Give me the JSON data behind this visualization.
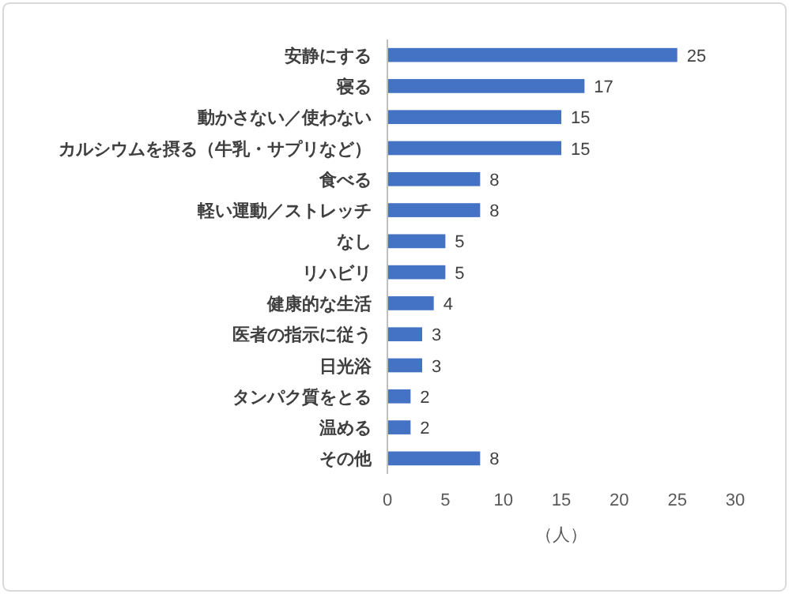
{
  "chart_data": {
    "type": "bar",
    "orientation": "horizontal",
    "categories": [
      "安静にする",
      "寝る",
      "動かさない／使わない",
      "カルシウムを摂る（牛乳・サプリなど）",
      "食べる",
      "軽い運動／ストレッチ",
      "なし",
      "リハビリ",
      "健康的な生活",
      "医者の指示に従う",
      "日光浴",
      "タンパク質をとる",
      "温める",
      "その他"
    ],
    "values": [
      25,
      17,
      15,
      15,
      8,
      8,
      5,
      5,
      4,
      3,
      3,
      2,
      2,
      8
    ],
    "color": "#4472c4",
    "xlim": [
      0,
      30
    ],
    "xticks": [
      0,
      5,
      10,
      15,
      20,
      25,
      30
    ],
    "xlabel": "（人）",
    "data_labels": true
  }
}
